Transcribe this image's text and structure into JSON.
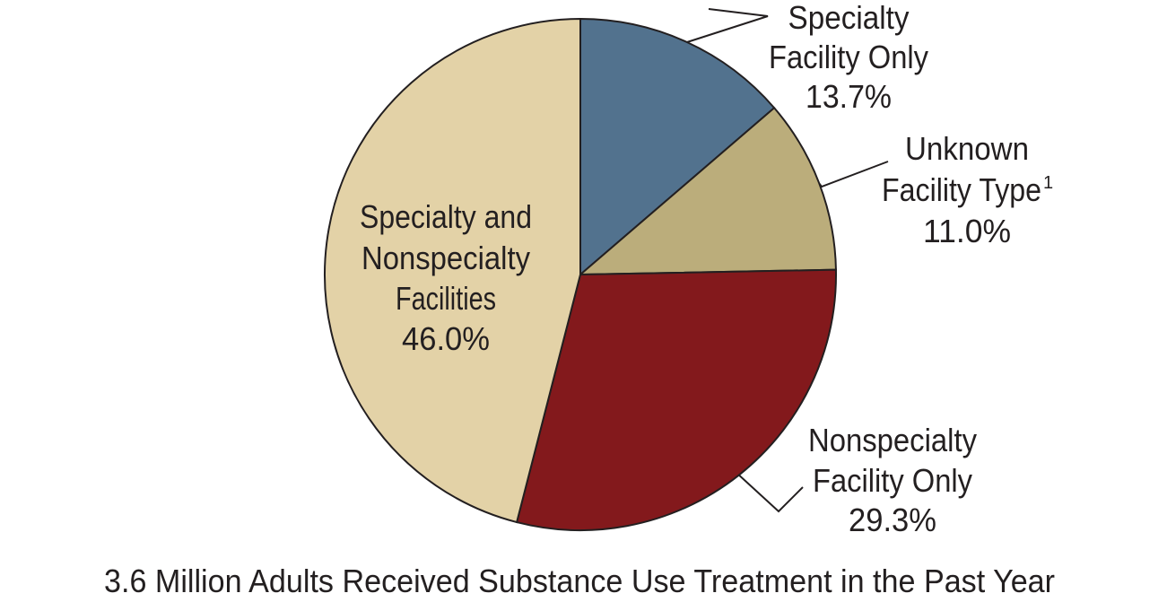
{
  "chart_data": {
    "type": "pie",
    "title": "3.6 Million Adults Received Substance Use Treatment in the Past Year",
    "slices": [
      {
        "label": "Specialty Facility Only",
        "label_lines": [
          "Specialty",
          "Facility Only"
        ],
        "value": 13.7,
        "value_label": "13.7%",
        "color": "#52728e"
      },
      {
        "label": "Unknown Facility Type",
        "label_lines": [
          "Unknown",
          "Facility Type"
        ],
        "footnote": "1",
        "value": 11.0,
        "value_label": "11.0%",
        "color": "#bbad7b"
      },
      {
        "label": "Nonspecialty Facility Only",
        "label_lines": [
          "Nonspecialty",
          "Facility Only"
        ],
        "value": 29.3,
        "value_label": "29.3%",
        "color": "#83191c"
      },
      {
        "label": "Specialty and Nonspecialty Facilities",
        "label_lines": [
          "Specialty and",
          "Nonspecialty",
          "Facilities"
        ],
        "value": 46.0,
        "value_label": "46.0%",
        "color": "#e3d2a7"
      }
    ],
    "start": "12 o'clock",
    "direction": "clockwise",
    "legend": "none"
  }
}
